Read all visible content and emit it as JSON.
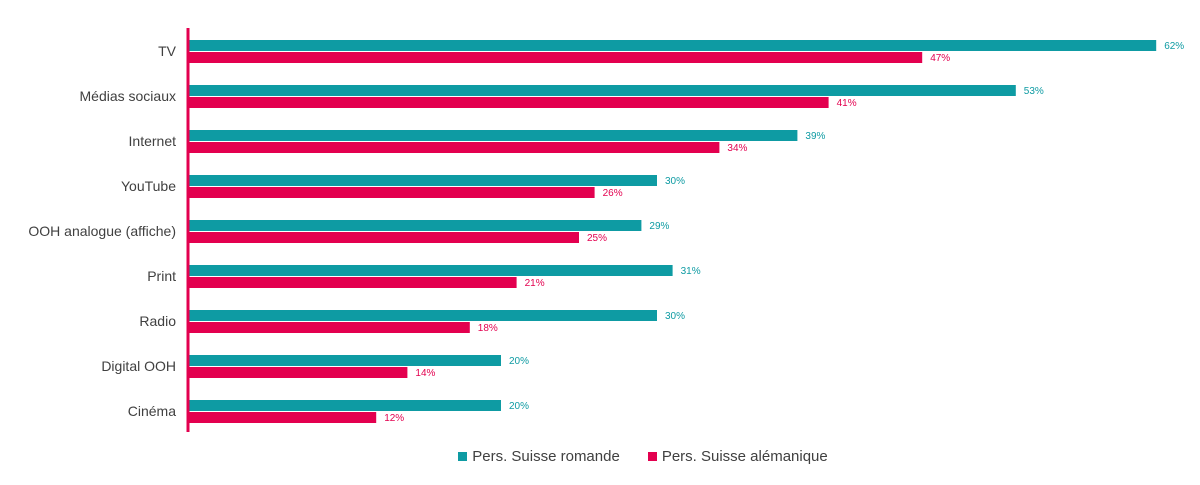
{
  "chart_data": {
    "type": "bar",
    "orientation": "horizontal",
    "categories": [
      "TV",
      "Médias sociaux",
      "Internet",
      "YouTube",
      "OOH analogue (affiche)",
      "Print",
      "Radio",
      "Digital OOH",
      "Cinéma"
    ],
    "series": [
      {
        "name": "Pers. Suisse romande",
        "color": "#0e9ba3",
        "values": [
          62,
          53,
          39,
          30,
          29,
          31,
          30,
          20,
          20
        ],
        "labels": [
          "62%",
          "53%",
          "39%",
          "30%",
          "29%",
          "31%",
          "30%",
          "20%",
          "20%"
        ]
      },
      {
        "name": "Pers. Suisse alémanique",
        "color": "#e3004f",
        "values": [
          47,
          41,
          34,
          26,
          25,
          21,
          18,
          14,
          12
        ],
        "labels": [
          "47%",
          "41%",
          "34%",
          "26%",
          "25%",
          "21%",
          "18%",
          "14%",
          "12%"
        ]
      }
    ],
    "xlim": [
      0,
      62
    ],
    "grid": false,
    "legend_position": "bottom-center",
    "axis_color": "#e3004f"
  }
}
